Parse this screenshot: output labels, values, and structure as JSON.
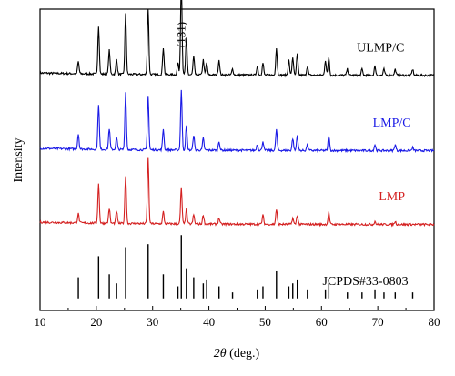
{
  "chart_data": {
    "type": "line",
    "title": "",
    "xlabel_italic": "2θ",
    "xlabel_rest": " (deg.)",
    "ylabel": "Intensity",
    "xlim": [
      10,
      80
    ],
    "x_ticks": [
      "10",
      "20",
      "30",
      "40",
      "50",
      "60",
      "70",
      "80"
    ],
    "y_ticks_labeled": false,
    "grid": false,
    "legend": "labels beside each trace",
    "annotations": [
      {
        "text": "(131)",
        "x": 35.1,
        "rotated": true
      }
    ],
    "series": [
      {
        "name": "ULMP/C",
        "color": "#000000",
        "baseline": 0.78,
        "peaks": [
          [
            16.8,
            0.04
          ],
          [
            20.4,
            0.16
          ],
          [
            22.3,
            0.08
          ],
          [
            23.6,
            0.05
          ],
          [
            25.2,
            0.2
          ],
          [
            29.2,
            0.22
          ],
          [
            31.9,
            0.09
          ],
          [
            34.5,
            0.04
          ],
          [
            35.1,
            0.31
          ],
          [
            36.0,
            0.12
          ],
          [
            37.3,
            0.06
          ],
          [
            39.0,
            0.05
          ],
          [
            39.6,
            0.04
          ],
          [
            41.8,
            0.05
          ],
          [
            44.2,
            0.02
          ],
          [
            48.6,
            0.03
          ],
          [
            49.6,
            0.04
          ],
          [
            52.0,
            0.09
          ],
          [
            54.2,
            0.05
          ],
          [
            54.9,
            0.06
          ],
          [
            55.7,
            0.07
          ],
          [
            57.5,
            0.03
          ],
          [
            60.7,
            0.05
          ],
          [
            61.3,
            0.06
          ],
          [
            64.6,
            0.02
          ],
          [
            67.2,
            0.02
          ],
          [
            69.5,
            0.03
          ],
          [
            71.1,
            0.02
          ],
          [
            73.1,
            0.02
          ],
          [
            76.2,
            0.02
          ]
        ]
      },
      {
        "name": "LMP/C",
        "color": "#1a1ae6",
        "baseline": 0.53,
        "peaks": [
          [
            16.8,
            0.05
          ],
          [
            20.4,
            0.15
          ],
          [
            22.3,
            0.07
          ],
          [
            23.6,
            0.04
          ],
          [
            25.2,
            0.19
          ],
          [
            29.2,
            0.18
          ],
          [
            31.9,
            0.07
          ],
          [
            35.1,
            0.2
          ],
          [
            36.0,
            0.08
          ],
          [
            37.3,
            0.05
          ],
          [
            39.0,
            0.04
          ],
          [
            41.8,
            0.03
          ],
          [
            48.6,
            0.02
          ],
          [
            49.6,
            0.03
          ],
          [
            52.0,
            0.07
          ],
          [
            54.9,
            0.04
          ],
          [
            55.7,
            0.05
          ],
          [
            57.5,
            0.02
          ],
          [
            61.3,
            0.05
          ],
          [
            69.5,
            0.02
          ],
          [
            73.1,
            0.02
          ],
          [
            76.2,
            0.01
          ]
        ]
      },
      {
        "name": "LMP",
        "color": "#d42020",
        "baseline": 0.285,
        "peaks": [
          [
            16.8,
            0.03
          ],
          [
            20.4,
            0.13
          ],
          [
            22.3,
            0.05
          ],
          [
            23.6,
            0.04
          ],
          [
            25.2,
            0.16
          ],
          [
            29.2,
            0.22
          ],
          [
            31.9,
            0.04
          ],
          [
            35.1,
            0.12
          ],
          [
            36.0,
            0.05
          ],
          [
            37.3,
            0.03
          ],
          [
            39.0,
            0.03
          ],
          [
            41.8,
            0.02
          ],
          [
            49.6,
            0.03
          ],
          [
            52.0,
            0.05
          ],
          [
            54.9,
            0.02
          ],
          [
            55.7,
            0.03
          ],
          [
            61.3,
            0.04
          ],
          [
            69.5,
            0.01
          ],
          [
            73.1,
            0.01
          ]
        ]
      }
    ],
    "reference": {
      "name": "JCPDS#33-0803",
      "color": "#000000",
      "baseline": 0.04,
      "lines": [
        [
          16.8,
          0.07
        ],
        [
          20.4,
          0.14
        ],
        [
          22.3,
          0.08
        ],
        [
          23.6,
          0.05
        ],
        [
          25.2,
          0.17
        ],
        [
          29.2,
          0.18
        ],
        [
          31.9,
          0.08
        ],
        [
          34.5,
          0.04
        ],
        [
          35.1,
          0.21
        ],
        [
          36.0,
          0.1
        ],
        [
          37.3,
          0.07
        ],
        [
          39.0,
          0.05
        ],
        [
          39.6,
          0.06
        ],
        [
          41.8,
          0.04
        ],
        [
          44.2,
          0.02
        ],
        [
          48.6,
          0.03
        ],
        [
          49.6,
          0.04
        ],
        [
          52.0,
          0.09
        ],
        [
          54.2,
          0.04
        ],
        [
          54.9,
          0.05
        ],
        [
          55.7,
          0.06
        ],
        [
          57.5,
          0.03
        ],
        [
          60.7,
          0.03
        ],
        [
          61.3,
          0.05
        ],
        [
          64.6,
          0.02
        ],
        [
          67.2,
          0.02
        ],
        [
          69.5,
          0.03
        ],
        [
          71.1,
          0.02
        ],
        [
          73.1,
          0.02
        ],
        [
          76.2,
          0.02
        ]
      ]
    }
  }
}
